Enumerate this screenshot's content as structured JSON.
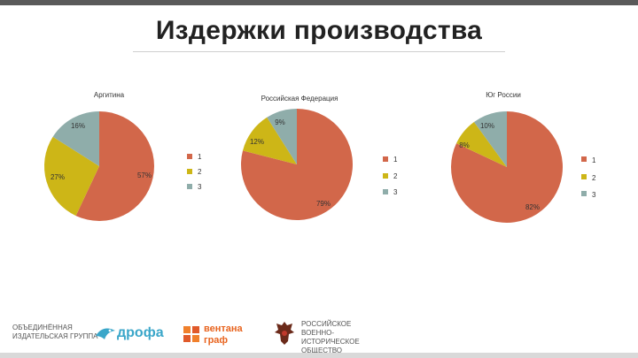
{
  "slide": {
    "title": "Издержки производства"
  },
  "colors": {
    "slice_1": "#d2674a",
    "slice_2": "#cdb617",
    "slice_3": "#8fadaa"
  },
  "chart_data": [
    {
      "type": "pie",
      "title": "Аргитина",
      "categories": [
        "1",
        "2",
        "3"
      ],
      "values": [
        57,
        27,
        16
      ],
      "data_labels": [
        "57%",
        "27%",
        "16%"
      ],
      "legend": [
        "1",
        "2",
        "3"
      ],
      "legend_position": "right"
    },
    {
      "type": "pie",
      "title": "Российская Федерация",
      "categories": [
        "1",
        "2",
        "3"
      ],
      "values": [
        79,
        12,
        9
      ],
      "data_labels": [
        "79%",
        "12%",
        "9%"
      ],
      "legend": [
        "1",
        "2",
        "3"
      ],
      "legend_position": "right"
    },
    {
      "type": "pie",
      "title": "Юг России",
      "categories": [
        "1",
        "2",
        "3"
      ],
      "values": [
        82,
        8,
        10
      ],
      "data_labels": [
        "82%",
        "8%",
        "10%"
      ],
      "legend": [
        "1",
        "2",
        "3"
      ],
      "legend_position": "right"
    }
  ],
  "logos": {
    "group_line1": "ОБЪЕДИНЁННАЯ",
    "group_line2": "ИЗДАТЕЛЬСКАЯ ГРУППА",
    "drofa": "дрофа",
    "ventana_line1": "вентана",
    "ventana_line2": "граф",
    "rio_line1": "РОССИЙСКОЕ",
    "rio_line2": "ВОЕННО-ИСТОРИЧЕСКОЕ",
    "rio_line3": "ОБЩЕСТВО"
  }
}
